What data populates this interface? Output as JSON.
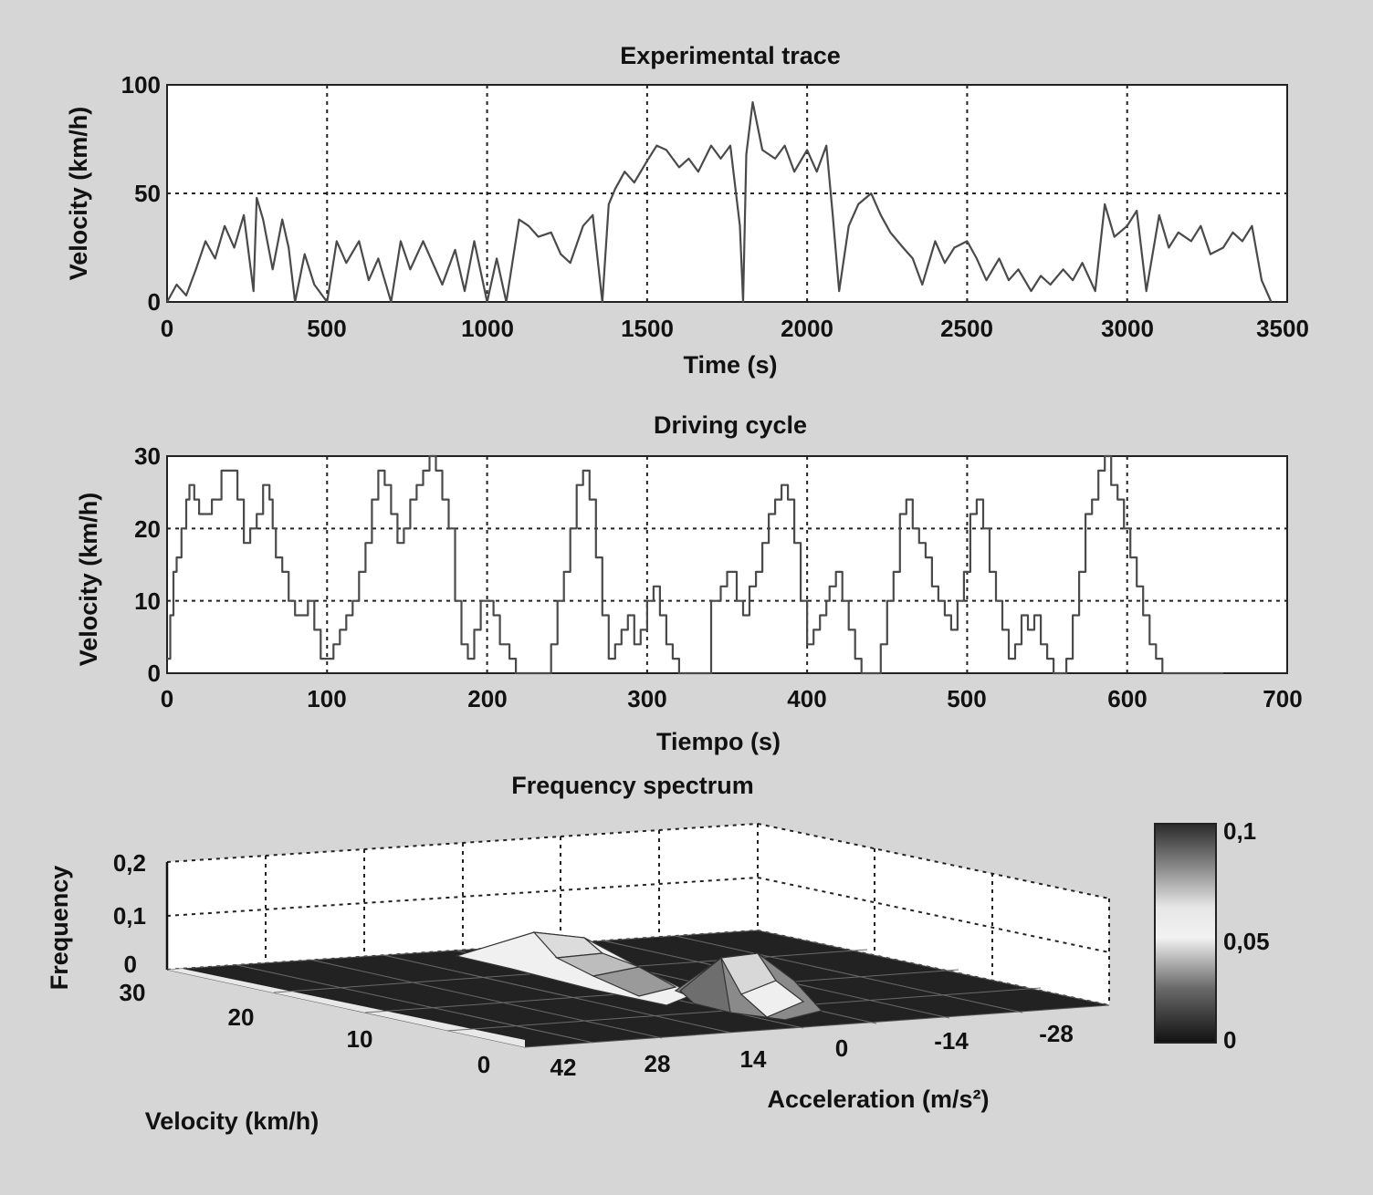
{
  "chart_data": [
    {
      "type": "line",
      "title": "Experimental trace",
      "xlabel": "Time (s)",
      "ylabel": "Velocity (km/h)",
      "xlim": [
        0,
        3500
      ],
      "ylim": [
        0,
        100
      ],
      "xticks": [
        "0",
        "500",
        "1000",
        "1500",
        "2000",
        "2500",
        "3000",
        "3500"
      ],
      "yticks": [
        "0",
        "50",
        "100"
      ],
      "grid": true,
      "series": [
        {
          "x": [
            0,
            30,
            60,
            90,
            120,
            150,
            180,
            210,
            240,
            270,
            280,
            300,
            330,
            360,
            380,
            400,
            430,
            460,
            500,
            530,
            560,
            600,
            630,
            660,
            700,
            730,
            760,
            800,
            830,
            860,
            900,
            930,
            960,
            1000,
            1030,
            1060,
            1100,
            1130,
            1160,
            1200,
            1230,
            1260,
            1300,
            1330,
            1360,
            1380,
            1400,
            1430,
            1460,
            1500,
            1530,
            1560,
            1600,
            1630,
            1660,
            1700,
            1730,
            1760,
            1790,
            1800,
            1810,
            1830,
            1860,
            1900,
            1930,
            1960,
            2000,
            2030,
            2060,
            2080,
            2100,
            2130,
            2160,
            2200,
            2230,
            2260,
            2300,
            2330,
            2360,
            2400,
            2430,
            2460,
            2500,
            2530,
            2560,
            2600,
            2630,
            2660,
            2700,
            2730,
            2760,
            2800,
            2830,
            2860,
            2900,
            2930,
            2960,
            3000,
            3030,
            3060,
            3100,
            3130,
            3160,
            3200,
            3230,
            3260,
            3300,
            3330,
            3360,
            3390,
            3420,
            3450
          ],
          "y": [
            0,
            8,
            3,
            15,
            28,
            20,
            35,
            25,
            40,
            5,
            48,
            38,
            15,
            38,
            25,
            0,
            22,
            8,
            0,
            28,
            18,
            28,
            10,
            20,
            0,
            28,
            15,
            28,
            18,
            8,
            24,
            5,
            28,
            0,
            20,
            0,
            38,
            35,
            30,
            32,
            22,
            18,
            35,
            40,
            0,
            45,
            52,
            60,
            55,
            65,
            72,
            70,
            62,
            66,
            60,
            72,
            66,
            72,
            35,
            0,
            68,
            92,
            70,
            66,
            72,
            60,
            70,
            60,
            72,
            40,
            5,
            35,
            45,
            50,
            40,
            32,
            25,
            20,
            8,
            28,
            18,
            25,
            28,
            20,
            10,
            20,
            10,
            15,
            5,
            12,
            8,
            15,
            10,
            18,
            5,
            45,
            30,
            35,
            42,
            5,
            40,
            25,
            32,
            28,
            35,
            22,
            25,
            32,
            28,
            35,
            10,
            0
          ],
          "color": "#4a4a4a"
        }
      ]
    },
    {
      "type": "line",
      "title": "Driving cycle",
      "xlabel": "Tiempo (s)",
      "ylabel": "Velocity (km/h)",
      "xlim": [
        0,
        700
      ],
      "ylim": [
        0,
        30
      ],
      "xticks": [
        "0",
        "100",
        "200",
        "300",
        "400",
        "500",
        "600",
        "700"
      ],
      "yticks": [
        "0",
        "10",
        "20",
        "30"
      ],
      "grid": true,
      "series": [
        {
          "x": [
            0,
            2,
            4,
            6,
            9,
            12,
            14,
            17,
            20,
            24,
            28,
            34,
            40,
            44,
            48,
            52,
            56,
            60,
            64,
            66,
            68,
            72,
            76,
            80,
            84,
            88,
            92,
            96,
            100,
            104,
            108,
            112,
            116,
            120,
            124,
            128,
            132,
            136,
            140,
            144,
            148,
            152,
            156,
            160,
            164,
            168,
            172,
            176,
            180,
            184,
            188,
            192,
            196,
            200,
            204,
            208,
            214,
            218,
            222,
            226,
            230,
            234,
            240,
            244,
            248,
            252,
            256,
            260,
            264,
            268,
            272,
            276,
            280,
            284,
            288,
            292,
            296,
            300,
            304,
            308,
            312,
            316,
            320,
            324,
            328,
            332,
            336,
            340,
            344,
            346,
            350,
            356,
            360,
            364,
            368,
            372,
            376,
            380,
            384,
            388,
            392,
            396,
            400,
            404,
            408,
            412,
            414,
            418,
            422,
            426,
            430,
            434,
            438,
            442,
            446,
            450,
            454,
            458,
            462,
            466,
            470,
            474,
            478,
            482,
            486,
            490,
            494,
            498,
            502,
            506,
            510,
            514,
            518,
            522,
            526,
            530,
            534,
            538,
            542,
            546,
            550,
            554,
            558,
            562,
            566,
            570,
            574,
            578,
            582,
            586,
            590,
            594,
            598,
            602,
            606,
            610,
            614,
            618,
            622,
            626,
            630,
            634,
            638,
            642,
            646,
            650,
            654,
            658,
            660
          ],
          "y": [
            2,
            8,
            14,
            16,
            20,
            24,
            26,
            24,
            22,
            22,
            24,
            28,
            28,
            24,
            18,
            20,
            22,
            26,
            24,
            20,
            16,
            14,
            10,
            8,
            8,
            10,
            6,
            2,
            2,
            4,
            6,
            8,
            10,
            14,
            18,
            24,
            28,
            26,
            22,
            18,
            20,
            24,
            26,
            28,
            30,
            28,
            24,
            20,
            10,
            4,
            2,
            6,
            10,
            10,
            8,
            4,
            2,
            0,
            0,
            0,
            0,
            0,
            4,
            10,
            14,
            20,
            26,
            28,
            24,
            16,
            8,
            2,
            4,
            6,
            8,
            4,
            6,
            10,
            12,
            8,
            4,
            2,
            0,
            0,
            0,
            0,
            0,
            10,
            10,
            12,
            14,
            10,
            8,
            12,
            14,
            18,
            22,
            24,
            26,
            24,
            18,
            10,
            4,
            6,
            8,
            10,
            12,
            14,
            10,
            6,
            2,
            0,
            0,
            0,
            4,
            10,
            14,
            22,
            24,
            20,
            18,
            16,
            12,
            10,
            8,
            6,
            10,
            14,
            22,
            24,
            20,
            14,
            10,
            6,
            2,
            4,
            8,
            6,
            8,
            4,
            2,
            0,
            0,
            2,
            8,
            14,
            22,
            24,
            28,
            30,
            26,
            24,
            20,
            16,
            12,
            8,
            4,
            2,
            0,
            0,
            0,
            0,
            0,
            0,
            0,
            0,
            0,
            0,
            0
          ],
          "color": "#4a4a4a"
        }
      ]
    },
    {
      "type": "heatmap",
      "title": "Frequency spectrum",
      "zlabel": "Frequency",
      "xlabel": "Acceleration (m/s²)",
      "ylabel": "Velocity (km/h)",
      "zticks": [
        "0",
        "0,1",
        "0,2"
      ],
      "xticks": [
        "42",
        "28",
        "14",
        "0",
        "-14",
        "-28"
      ],
      "yticks": [
        "30",
        "20",
        "10",
        "0"
      ],
      "colorbar_ticks": [
        "0",
        "0,05",
        "0,1"
      ],
      "colorbar_range": [
        0,
        0.1
      ],
      "peaks": [
        {
          "acceleration": 28,
          "velocity": 5,
          "frequency": 0.06
        },
        {
          "acceleration": 14,
          "velocity": 5,
          "frequency": 0.05
        }
      ]
    }
  ]
}
